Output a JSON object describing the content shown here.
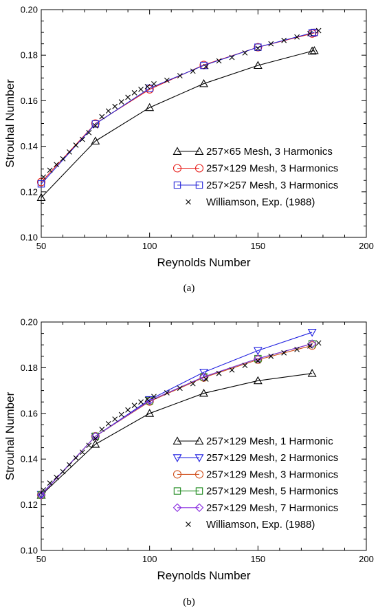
{
  "chart_data": [
    {
      "type": "line",
      "caption": "(a)",
      "xlabel": "Reynolds Number",
      "ylabel": "Strouhal Number",
      "xlim": [
        50,
        200
      ],
      "ylim": [
        0.1,
        0.2
      ],
      "xticks": [
        50,
        100,
        150,
        200
      ],
      "yticks": [
        0.1,
        0.12,
        0.14,
        0.16,
        0.18,
        0.2
      ],
      "xtick_labels": [
        "50",
        "100",
        "150",
        "200"
      ],
      "ytick_labels": [
        "0.10",
        "0.12",
        "0.14",
        "0.16",
        "0.18",
        "0.20"
      ],
      "grid": false,
      "legend_position": "lower-right",
      "series": [
        {
          "name": "257×65 Mesh, 3 Harmonics",
          "marker": "triangle-up",
          "color": "#000000",
          "x": [
            50,
            75,
            100,
            125,
            150,
            175,
            176
          ],
          "y": [
            0.1175,
            0.1423,
            0.157,
            0.1675,
            0.1755,
            0.1818,
            0.182
          ]
        },
        {
          "name": "257×129 Mesh, 3 Harmonics",
          "marker": "circle",
          "color": "#e8201c",
          "x": [
            50,
            75,
            100,
            125,
            150,
            175,
            176
          ],
          "y": [
            0.1243,
            0.15,
            0.165,
            0.1757,
            0.1835,
            0.1895,
            0.1898
          ]
        },
        {
          "name": "257×257 Mesh, 3 Harmonics",
          "marker": "square",
          "color": "#2828d8",
          "x": [
            50,
            75,
            100,
            125,
            150,
            175,
            176
          ],
          "y": [
            0.1235,
            0.1498,
            0.1655,
            0.1755,
            0.1835,
            0.1898,
            0.19
          ]
        },
        {
          "name": "Williamson, Exp. (1988)",
          "marker": "x",
          "color": "#000000",
          "line": false,
          "x": [
            51,
            54,
            57,
            60,
            63,
            66,
            69,
            72,
            75,
            78,
            81,
            84,
            87,
            90,
            93,
            96,
            99,
            102,
            108,
            114,
            120,
            126,
            132,
            138,
            144,
            150,
            156,
            162,
            168,
            174,
            178
          ],
          "y": [
            0.1265,
            0.1295,
            0.132,
            0.1345,
            0.1375,
            0.1405,
            0.143,
            0.146,
            0.149,
            0.153,
            0.1555,
            0.1575,
            0.1595,
            0.1615,
            0.1635,
            0.165,
            0.1662,
            0.1674,
            0.169,
            0.171,
            0.173,
            0.175,
            0.1775,
            0.179,
            0.181,
            0.183,
            0.185,
            0.1865,
            0.188,
            0.1895,
            0.1908
          ]
        }
      ]
    },
    {
      "type": "line",
      "caption": "(b)",
      "xlabel": "Reynolds Number",
      "ylabel": "Strouhal Number",
      "xlim": [
        50,
        200
      ],
      "ylim": [
        0.1,
        0.2
      ],
      "xticks": [
        50,
        100,
        150,
        200
      ],
      "yticks": [
        0.1,
        0.12,
        0.14,
        0.16,
        0.18,
        0.2
      ],
      "xtick_labels": [
        "50",
        "100",
        "150",
        "200"
      ],
      "ytick_labels": [
        "0.10",
        "0.12",
        "0.14",
        "0.16",
        "0.18",
        "0.20"
      ],
      "grid": false,
      "legend_position": "lower-right",
      "series": [
        {
          "name": "257×129 Mesh, 1 Harmonic",
          "marker": "triangle-up",
          "color": "#000000",
          "x": [
            50,
            75,
            100,
            125,
            150,
            175
          ],
          "y": [
            0.1242,
            0.1465,
            0.16,
            0.1688,
            0.1743,
            0.1775
          ]
        },
        {
          "name": "257×129 Mesh, 2 Harmonics",
          "marker": "triangle-down",
          "color": "#2020e0",
          "x": [
            50,
            75,
            100,
            125,
            150,
            175
          ],
          "y": [
            0.1245,
            0.15,
            0.166,
            0.178,
            0.1875,
            0.1955
          ]
        },
        {
          "name": "257×129 Mesh, 3 Harmonics",
          "marker": "circle",
          "color": "#d0501c",
          "x": [
            50,
            75,
            100,
            125,
            150,
            175
          ],
          "y": [
            0.1243,
            0.15,
            0.1652,
            0.1757,
            0.1835,
            0.1897
          ]
        },
        {
          "name": "257×129 Mesh, 5 Harmonics",
          "marker": "square",
          "color": "#1f8a1f",
          "x": [
            50,
            75,
            100,
            125,
            150,
            175
          ],
          "y": [
            0.1243,
            0.15,
            0.1655,
            0.176,
            0.184,
            0.1905
          ]
        },
        {
          "name": "257×129 Mesh, 7 Harmonics",
          "marker": "diamond",
          "color": "#8a2ee0",
          "x": [
            50,
            75,
            100,
            125,
            150,
            175
          ],
          "y": [
            0.1243,
            0.15,
            0.1655,
            0.176,
            0.184,
            0.1905
          ]
        },
        {
          "name": "Williamson, Exp. (1988)",
          "marker": "x",
          "color": "#000000",
          "line": false,
          "x": [
            51,
            54,
            57,
            60,
            63,
            66,
            69,
            72,
            75,
            78,
            81,
            84,
            87,
            90,
            93,
            96,
            99,
            102,
            108,
            114,
            120,
            126,
            132,
            138,
            144,
            150,
            156,
            162,
            168,
            174,
            178
          ],
          "y": [
            0.1265,
            0.1295,
            0.132,
            0.1345,
            0.1375,
            0.1405,
            0.143,
            0.146,
            0.149,
            0.153,
            0.1555,
            0.1575,
            0.1595,
            0.1615,
            0.1635,
            0.165,
            0.1662,
            0.1674,
            0.169,
            0.171,
            0.173,
            0.175,
            0.1775,
            0.179,
            0.181,
            0.183,
            0.185,
            0.1865,
            0.188,
            0.1895,
            0.1908
          ]
        }
      ]
    }
  ]
}
